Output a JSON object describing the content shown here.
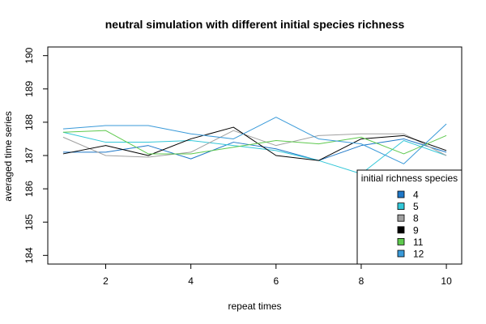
{
  "chart_data": {
    "type": "line",
    "title": "neutral simulation with different initial species richness",
    "xlabel": "repeat times",
    "ylabel": "averaged time series",
    "x": [
      1,
      2,
      3,
      4,
      5,
      6,
      7,
      8,
      9,
      10
    ],
    "xlim": [
      0.64,
      10.36
    ],
    "ylim": [
      183.74,
      190.26
    ],
    "xticks": [
      "2",
      "4",
      "6",
      "8",
      "10"
    ],
    "yticks": [
      "184",
      "185",
      "186",
      "187",
      "188",
      "189",
      "190"
    ],
    "legend": {
      "title": "initial richness species",
      "position": "bottom-right"
    },
    "series": [
      {
        "name": "4",
        "color": "#1f78c8",
        "values": [
          187.1,
          187.1,
          187.3,
          186.9,
          187.4,
          187.2,
          186.85,
          187.3,
          187.5,
          187.1
        ]
      },
      {
        "name": "5",
        "color": "#33c7d8",
        "values": [
          187.7,
          187.4,
          187.4,
          187.45,
          187.3,
          187.15,
          186.85,
          186.45,
          187.45,
          187.0
        ]
      },
      {
        "name": "8",
        "color": "#a0a0a0",
        "values": [
          187.55,
          187.0,
          186.95,
          187.1,
          187.75,
          187.3,
          187.6,
          187.65,
          187.65,
          187.0
        ]
      },
      {
        "name": "9",
        "color": "#000000",
        "values": [
          187.05,
          187.3,
          187.0,
          187.5,
          187.85,
          187.0,
          186.85,
          187.5,
          187.6,
          187.15
        ]
      },
      {
        "name": "11",
        "color": "#5ec94e",
        "values": [
          187.7,
          187.75,
          187.05,
          187.05,
          187.25,
          187.45,
          187.35,
          187.55,
          187.05,
          187.6
        ]
      },
      {
        "name": "12",
        "color": "#3a9ad9",
        "values": [
          187.8,
          187.9,
          187.9,
          187.65,
          187.5,
          188.15,
          187.5,
          187.35,
          186.75,
          187.95
        ]
      }
    ]
  }
}
